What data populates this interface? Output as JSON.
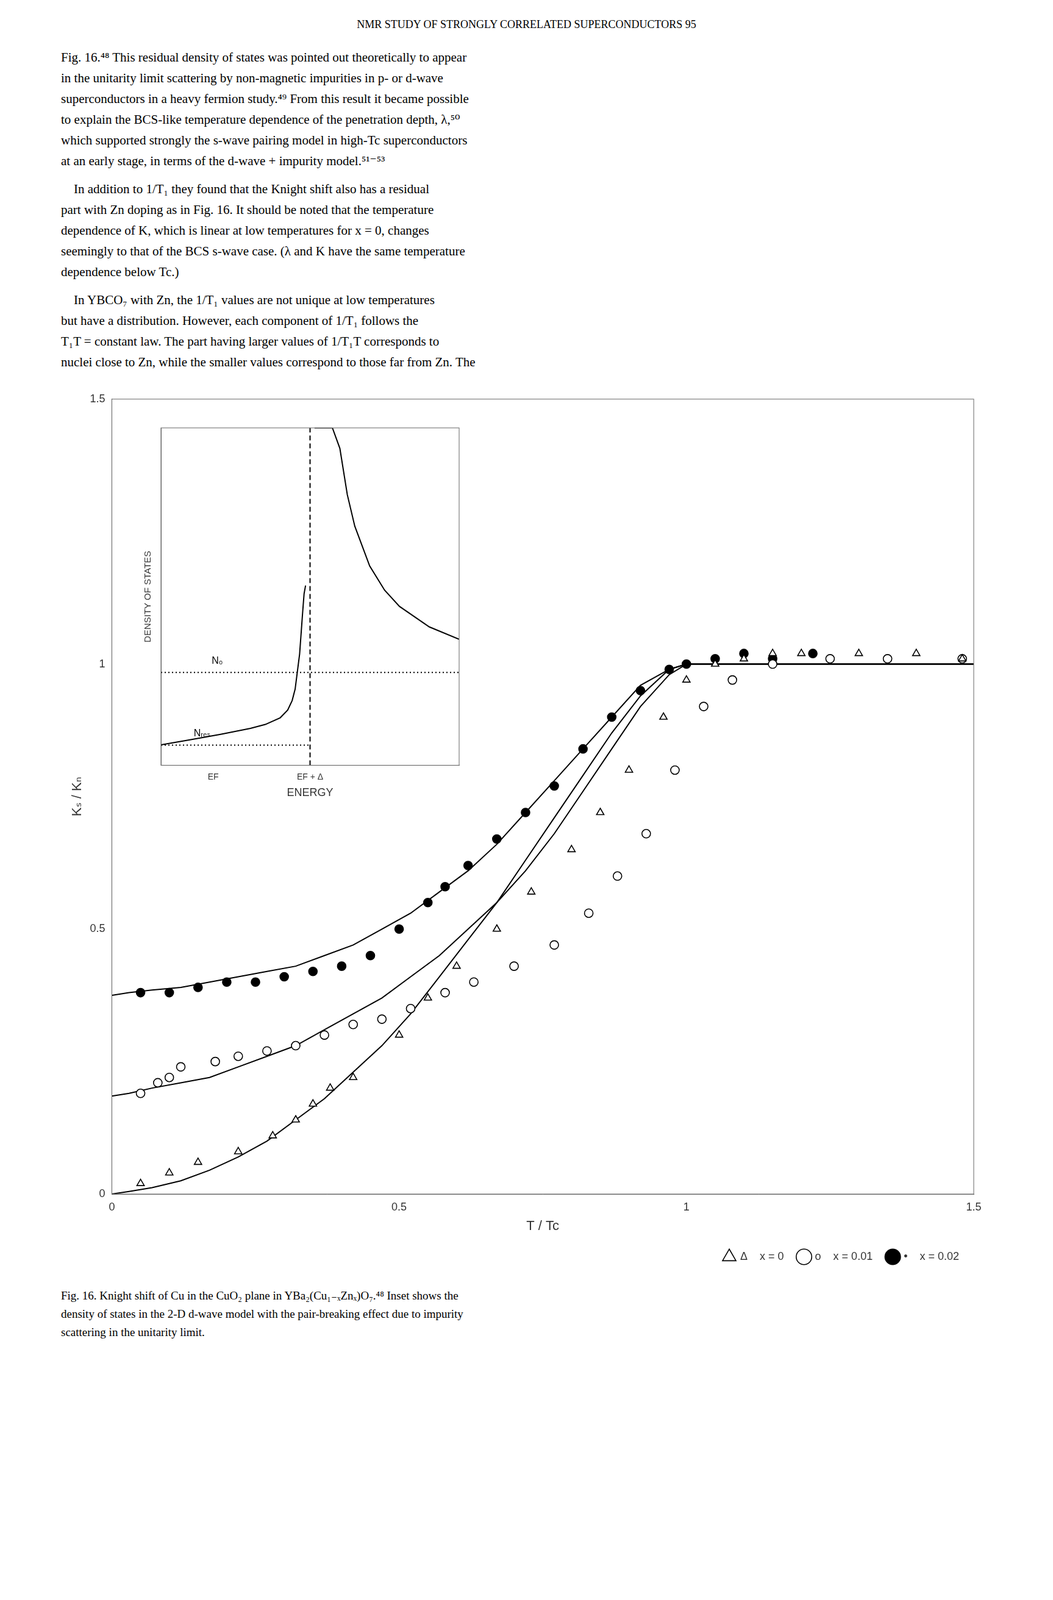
{
  "page_text": {
    "header": "NMR STUDY OF STRONGLY CORRELATED SUPERCONDUCTORS   95",
    "paragraphs": [
      [
        "Fig. 16.⁴⁸ This residual density of states was pointed out theoretically to appear",
        "in the unitarity limit scattering by non-magnetic impurities in p- or d-wave",
        "superconductors in a heavy fermion study.⁴⁹ From this result it became possible",
        "to explain the BCS-like temperature dependence of the penetration depth, λ,⁵⁰",
        "which supported strongly the s-wave pairing model in high-Tc superconductors",
        "at an early stage, in terms of the d-wave + impurity model.⁵¹⁻⁵³"
      ],
      [
        "    In addition to 1/T₁ they found that the Knight shift also has a residual",
        "part with Zn doping as in Fig. 16. It should be noted that the temperature",
        "dependence of K, which is linear at low temperatures for x = 0, changes",
        "seemingly to that of the BCS s-wave case. (λ and K have the same temperature",
        "dependence below Tc.)"
      ],
      [
        "    In YBCO₇ with Zn, the 1/T₁ values are not unique at low temperatures",
        "but have a distribution. However, each component of 1/T₁ follows the",
        "T₁T = constant law. The part having larger values of 1/T₁T corresponds to",
        "nuclei close to Zn, while the smaller values correspond to those far from Zn. The"
      ]
    ],
    "caption": [
      "Fig. 16. Knight shift of Cu in the CuO₂ plane in YBa₂(Cu₁₋ₓZnₓ)O₇.⁴⁸ Inset shows the",
      "density of states in the 2-D d-wave model with the pair-breaking effect due to impurity",
      "scattering in the unitarity limit."
    ]
  },
  "chart_data": [
    {
      "type": "scatter",
      "xlabel": "T / Tc",
      "ylabel": "Kₛ / Kₙ",
      "xlim": [
        0,
        1.5
      ],
      "ylim": [
        0,
        1.5
      ],
      "xticks": [
        0,
        0.5,
        1,
        1.5
      ],
      "yticks": [
        0,
        0.5,
        1,
        1.5
      ],
      "grid": false,
      "legend": "lower right",
      "series": [
        {
          "name": "Δ    x = 0",
          "marker": "open_triangle",
          "color": "#000000",
          "x": [
            0.05,
            0.1,
            0.15,
            0.22,
            0.28,
            0.32,
            0.35,
            0.38,
            0.42,
            0.5,
            0.55,
            0.6,
            0.67,
            0.73,
            0.8,
            0.85,
            0.9,
            0.96,
            1.0,
            1.05,
            1.1,
            1.15,
            1.2,
            1.3,
            1.4,
            1.48
          ],
          "values": [
            0.02,
            0.04,
            0.06,
            0.08,
            0.11,
            0.14,
            0.17,
            0.2,
            0.22,
            0.3,
            0.37,
            0.43,
            0.5,
            0.57,
            0.65,
            0.72,
            0.8,
            0.9,
            0.97,
            1.0,
            1.01,
            1.02,
            1.02,
            1.02,
            1.02,
            1.01
          ]
        },
        {
          "name": "o    x = 0.01",
          "marker": "open_circle",
          "color": "#000000",
          "x": [
            0.05,
            0.08,
            0.1,
            0.12,
            0.18,
            0.22,
            0.27,
            0.32,
            0.37,
            0.42,
            0.47,
            0.52,
            0.58,
            0.63,
            0.7,
            0.77,
            0.83,
            0.88,
            0.93,
            0.98,
            1.03,
            1.08,
            1.15,
            1.25,
            1.35,
            1.48
          ],
          "values": [
            0.19,
            0.21,
            0.22,
            0.24,
            0.25,
            0.26,
            0.27,
            0.28,
            0.3,
            0.32,
            0.33,
            0.35,
            0.38,
            0.4,
            0.43,
            0.47,
            0.53,
            0.6,
            0.68,
            0.8,
            0.92,
            0.97,
            1.0,
            1.01,
            1.01,
            1.01
          ]
        },
        {
          "name": "•    x = 0.02",
          "marker": "filled_circle",
          "color": "#000000",
          "x": [
            0.05,
            0.1,
            0.15,
            0.2,
            0.25,
            0.3,
            0.35,
            0.4,
            0.45,
            0.5,
            0.55,
            0.58,
            0.62,
            0.67,
            0.72,
            0.77,
            0.82,
            0.87,
            0.92,
            0.97,
            1.0,
            1.05,
            1.1,
            1.15,
            1.22
          ],
          "values": [
            0.38,
            0.38,
            0.39,
            0.4,
            0.4,
            0.41,
            0.42,
            0.43,
            0.45,
            0.5,
            0.55,
            0.58,
            0.62,
            0.67,
            0.72,
            0.77,
            0.84,
            0.9,
            0.95,
            0.99,
            1.0,
            1.01,
            1.02,
            1.01,
            1.02
          ]
        },
        {
          "type": "line",
          "line_style": "solid",
          "color": "#000000",
          "x": [
            0.0,
            0.03,
            0.07,
            0.12,
            0.17,
            0.22,
            0.27,
            0.32,
            0.37,
            0.42,
            0.47,
            0.52,
            0.57,
            0.62,
            0.67,
            0.72,
            0.77,
            0.82,
            0.87,
            0.92,
            0.97,
            1.0,
            1.5
          ],
          "values": [
            0.0,
            0.005,
            0.012,
            0.025,
            0.045,
            0.07,
            0.1,
            0.14,
            0.18,
            0.23,
            0.28,
            0.34,
            0.41,
            0.48,
            0.55,
            0.63,
            0.71,
            0.79,
            0.87,
            0.94,
            0.99,
            1.0,
            1.0
          ]
        },
        {
          "type": "line",
          "line_style": "solid",
          "color": "#000000",
          "x": [
            0.0,
            0.03,
            0.07,
            0.12,
            0.17,
            0.22,
            0.27,
            0.32,
            0.37,
            0.42,
            0.47,
            0.52,
            0.57,
            0.62,
            0.67,
            0.72,
            0.77,
            0.82,
            0.87,
            0.92,
            0.97,
            1.0,
            1.5
          ],
          "values": [
            0.185,
            0.19,
            0.2,
            0.21,
            0.22,
            0.24,
            0.26,
            0.28,
            0.31,
            0.34,
            0.37,
            0.41,
            0.45,
            0.5,
            0.55,
            0.61,
            0.68,
            0.76,
            0.84,
            0.92,
            0.98,
            1.0,
            1.0
          ]
        },
        {
          "type": "line",
          "line_style": "solid",
          "color": "#000000",
          "x": [
            0.0,
            0.03,
            0.07,
            0.12,
            0.17,
            0.22,
            0.27,
            0.32,
            0.37,
            0.42,
            0.47,
            0.52,
            0.57,
            0.62,
            0.67,
            0.72,
            0.77,
            0.82,
            0.87,
            0.92,
            0.97,
            1.0,
            1.5
          ],
          "values": [
            0.375,
            0.38,
            0.385,
            0.39,
            0.4,
            0.41,
            0.42,
            0.43,
            0.45,
            0.47,
            0.5,
            0.53,
            0.57,
            0.61,
            0.66,
            0.72,
            0.78,
            0.84,
            0.9,
            0.96,
            0.99,
            1.0,
            1.0
          ]
        }
      ]
    },
    {
      "type": "line",
      "xlabel": "ENERGY",
      "ylabel": "DENSITY OF STATES",
      "xlim": [
        0,
        2.0
      ],
      "ylim": [
        0,
        2.0
      ],
      "xticks": [
        {
          "value": 0.35,
          "label": "EF"
        },
        {
          "value": 1.0,
          "label": "EF + Δ"
        }
      ],
      "yticks": [],
      "grid": false,
      "series": [
        {
          "line_style": "solid",
          "color": "#000000",
          "x": [
            0.0,
            0.2,
            0.4,
            0.6,
            0.7,
            0.8,
            0.85,
            0.88,
            0.9,
            0.93,
            0.95,
            0.96,
            0.97
          ],
          "values": [
            0.1214,
            0.1522,
            0.1839,
            0.2192,
            0.2422,
            0.282,
            0.3275,
            0.384,
            0.4519,
            0.6595,
            0.9025,
            1.0169,
            1.0655
          ]
        },
        {
          "line_style": "solid",
          "color": "#000000",
          "x": [
            1.03,
            1.1,
            1.15,
            1.2,
            1.25,
            1.3,
            1.4,
            1.5,
            1.6,
            1.8,
            2.0
          ],
          "values": [
            2.0,
            2.0,
            2.0,
            1.8786,
            1.6038,
            1.4177,
            1.1817,
            1.0382,
            0.9418,
            0.8204,
            0.747
          ]
        },
        {
          "line_style": "dotted",
          "color": "#000000",
          "x": [
            0.0,
            2.0
          ],
          "values": [
            0.55,
            0.55
          ]
        },
        {
          "line_style": "dotted",
          "color": "#000000",
          "x": [
            0.0,
            1.0
          ],
          "values": [
            0.12,
            0.12
          ]
        },
        {
          "line_style": "dashed",
          "color": "#000000",
          "x": [
            1.0,
            1.0
          ],
          "values": [
            0.0,
            2.0
          ]
        }
      ],
      "annotations": [
        {
          "text": "N₀",
          "x": 0.34,
          "y": 0.59
        },
        {
          "text": "Nᵣₑₛ",
          "x": 0.22,
          "y": 0.16
        }
      ]
    }
  ]
}
